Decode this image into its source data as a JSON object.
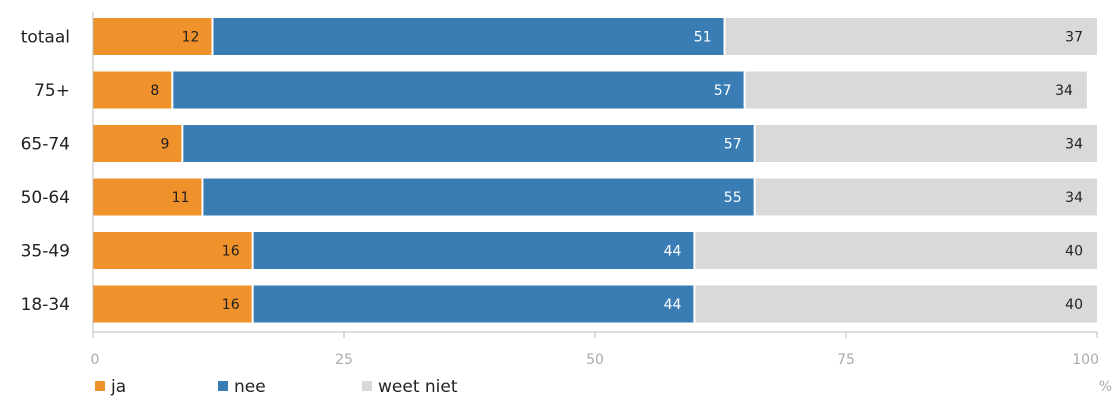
{
  "chart_data": {
    "type": "bar",
    "orientation": "horizontal",
    "stacked": true,
    "categories": [
      "totaal",
      "75+",
      "65-74",
      "50-64",
      "35-49",
      "18-34"
    ],
    "series": [
      {
        "name": "ja",
        "color": "#f0922b",
        "values": [
          12,
          8,
          9,
          11,
          16,
          16
        ]
      },
      {
        "name": "nee",
        "color": "#3a7db5",
        "values": [
          51,
          57,
          57,
          55,
          44,
          44
        ]
      },
      {
        "name": "weet niet",
        "color": "#d9d9d9",
        "values": [
          37,
          34,
          34,
          34,
          40,
          40
        ]
      }
    ],
    "xlim": [
      0,
      100
    ],
    "xticks": [
      "0",
      "25",
      "50",
      "75",
      "100"
    ],
    "xunit": "%",
    "legend_position": "bottom-left",
    "grid": false
  }
}
